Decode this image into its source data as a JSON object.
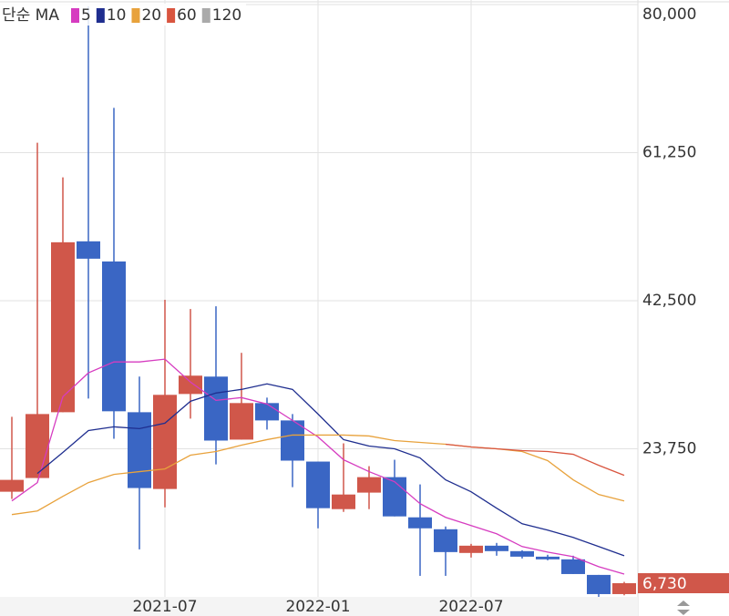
{
  "chart_data": {
    "type": "candlestick",
    "legend_title": "단순 MA",
    "categories": [
      null,
      null,
      null,
      null,
      null,
      null,
      "2021-07",
      null,
      null,
      null,
      null,
      null,
      "2022-01",
      null,
      null,
      null,
      null,
      null,
      "2022-07",
      null,
      null,
      null,
      null,
      null,
      null
    ],
    "ohlc": {
      "open": [
        18312,
        20047,
        28380,
        50020,
        47470,
        28380,
        18660,
        30690,
        32890,
        24910,
        29540,
        27340,
        22130,
        16110,
        18200,
        20160,
        15070,
        13560,
        10560,
        11480,
        10790,
        10090,
        9750,
        7780,
        5350
      ],
      "high": [
        27800,
        62510,
        58120,
        79800,
        66920,
        32890,
        42610,
        41450,
        41800,
        35900,
        30230,
        28150,
        22130,
        24440,
        21550,
        22360,
        19240,
        13910,
        11710,
        11830,
        10900,
        10330,
        10210,
        7780,
        6900
      ],
      "low": [
        17400,
        20047,
        28380,
        30110,
        25020,
        11020,
        16340,
        27570,
        21780,
        24910,
        26180,
        18890,
        13680,
        15760,
        16110,
        15190,
        7660,
        7660,
        9980,
        10210,
        9860,
        9630,
        7890,
        4890,
        5200
      ],
      "close": [
        19815,
        28150,
        49900,
        47820,
        28500,
        18780,
        30580,
        33010,
        24790,
        29540,
        27340,
        22250,
        16230,
        17960,
        20160,
        15190,
        13680,
        10670,
        11480,
        10790,
        10090,
        9750,
        7890,
        5350,
        6730
      ]
    },
    "up_color": "#d0574a",
    "down_color": "#3a66c4",
    "ma_series": [
      {
        "name": "5",
        "color": "#d63cc0",
        "values": [
          17150,
          19470,
          30350,
          33360,
          34750,
          34750,
          35100,
          32200,
          29880,
          30230,
          29420,
          27340,
          25250,
          22360,
          20860,
          19580,
          16800,
          15070,
          14030,
          12990,
          11370,
          10670,
          10090,
          8820,
          7890
        ]
      },
      {
        "name": "10",
        "color": "#1f2e8f",
        "values": [
          null,
          20620,
          23290,
          26060,
          26530,
          26300,
          26990,
          29770,
          30810,
          31270,
          31970,
          31270,
          28150,
          24910,
          24100,
          23750,
          22590,
          19820,
          18310,
          16230,
          14260,
          13450,
          12530,
          11370,
          10210
        ]
      },
      {
        "name": "20",
        "color": "#e8a23c",
        "values": [
          15420,
          15880,
          17730,
          19470,
          20510,
          20860,
          21200,
          22940,
          23400,
          24210,
          24910,
          25490,
          25490,
          25490,
          25370,
          24790,
          24560,
          24330,
          23980,
          23750,
          23400,
          22250,
          19820,
          17960,
          17150
        ]
      },
      {
        "name": "60",
        "color": "#d9553f",
        "values": [
          null,
          null,
          null,
          null,
          null,
          null,
          null,
          null,
          null,
          null,
          null,
          null,
          null,
          null,
          null,
          null,
          null,
          24330,
          23980,
          23750,
          23520,
          23400,
          23050,
          21660,
          20390
        ]
      },
      {
        "name": "120",
        "color": "#aaaaaa",
        "values": [
          null,
          null,
          null,
          null,
          null,
          null,
          null,
          null,
          null,
          null,
          null,
          null,
          null,
          null,
          null,
          null,
          null,
          null,
          null,
          null,
          null,
          null,
          null,
          null,
          null
        ]
      }
    ],
    "ylim": [
      5000,
      80000
    ],
    "yticks": [
      {
        "value": 23750,
        "label": "23,750"
      },
      {
        "value": 42500,
        "label": "42,500"
      },
      {
        "value": 61250,
        "label": "61,250"
      },
      {
        "value": 80000,
        "label": "80,000"
      }
    ],
    "last_price": {
      "value": 6730,
      "label": "6,730"
    },
    "grid": true
  }
}
